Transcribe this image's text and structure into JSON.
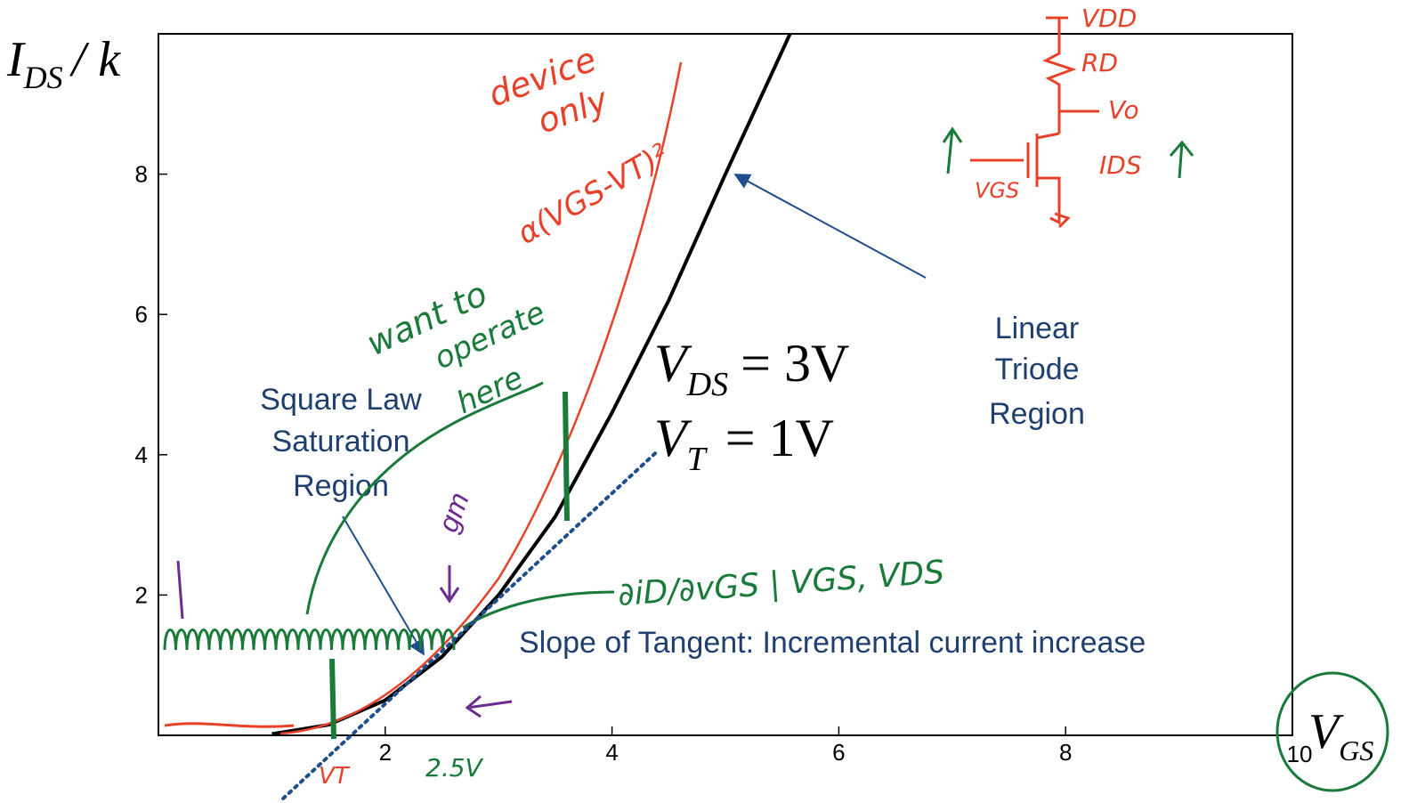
{
  "chart_data": {
    "type": "line",
    "ylabel": {
      "symbol": "I",
      "subscript": "DS",
      "suffix": "/ k"
    },
    "xlabel": {
      "symbol": "V",
      "subscript": "GS"
    },
    "x": [
      1.0,
      1.5,
      2.0,
      2.5,
      3.0,
      3.5,
      4.0,
      4.5,
      5.0,
      5.57
    ],
    "series": [
      {
        "color": "#000000",
        "values": [
          0.02,
          0.15,
          0.5,
          1.12,
          2.0,
          3.12,
          4.6,
          6.2,
          8.0,
          10
        ]
      }
    ],
    "tangent": {
      "x": [
        1.1,
        4.4
      ],
      "values": [
        -0.9,
        4.05
      ],
      "color": "#1f4e8c"
    },
    "xlim": [
      0,
      10
    ],
    "ylim": [
      0,
      10
    ],
    "xticks": [
      2,
      4,
      6,
      8,
      10
    ],
    "yticks": [
      2,
      4,
      6,
      8
    ],
    "conditions": [
      {
        "symbol": "V",
        "subscript": "DS",
        "value": "= 3V"
      },
      {
        "symbol": "V",
        "subscript": "T",
        "value": "= 1V"
      }
    ],
    "annotations": {
      "saturation": [
        "Square Law",
        "Saturation",
        "Region"
      ],
      "triode": [
        "Linear",
        "Triode",
        "Region"
      ],
      "slope": "Slope of Tangent:  Incremental current increase"
    },
    "handwritten": {
      "device_only": [
        "device",
        "only"
      ],
      "square_law": "α(VGS-VT)²",
      "want": [
        "want to",
        "operate",
        "here"
      ],
      "gm": "gm",
      "derivative": "∂iD/∂vGS | VGS, VDS",
      "vt": "VT",
      "operating_point": "2.5V",
      "vdd": "VDD",
      "rd": "RD",
      "vo": "Vo",
      "ids": "IDS",
      "vgs": "VGS"
    }
  }
}
